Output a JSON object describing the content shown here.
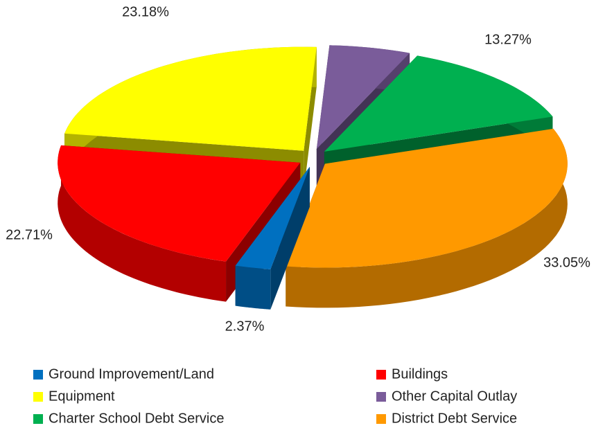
{
  "chart_data": {
    "type": "pie",
    "categories": [
      "Ground Improvement/Land",
      "Buildings",
      "Equipment",
      "Other Capital Outlay",
      "Charter School Debt Service",
      "District Debt Service"
    ],
    "values": [
      2.37,
      22.71,
      23.18,
      5.42,
      13.27,
      33.05
    ],
    "value_labels": [
      "2.37%",
      "22.71%",
      "23.18%",
      null,
      "13.27%",
      "33.05%"
    ],
    "colors": [
      "#0070c0",
      "#ff0000",
      "#ffff00",
      "#7a5c9a",
      "#00b050",
      "#ff9900"
    ],
    "legend": "bottom"
  }
}
